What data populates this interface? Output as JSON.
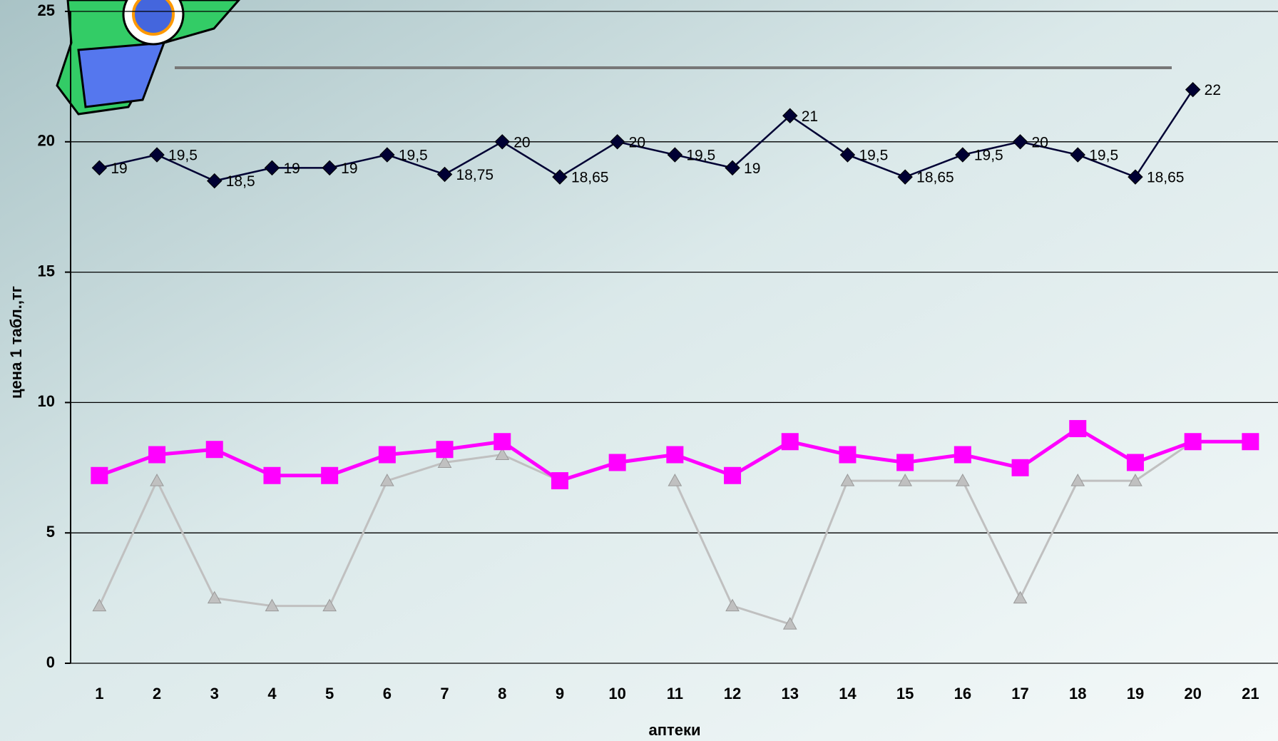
{
  "chart_data": {
    "type": "line",
    "y_label": "цена 1 табл.,тг",
    "x_label": "аптеки",
    "categories": [
      "1",
      "2",
      "3",
      "4",
      "5",
      "6",
      "7",
      "8",
      "9",
      "10",
      "11",
      "12",
      "13",
      "14",
      "15",
      "16",
      "17",
      "18",
      "19",
      "20",
      "21"
    ],
    "ylim": [
      0,
      25
    ],
    "yticks": [
      0,
      5,
      10,
      15,
      20,
      25
    ],
    "grid": true,
    "series": [
      {
        "color": "#000033",
        "marker": "diamond",
        "values": [
          19,
          19.5,
          18.5,
          19,
          19,
          19.5,
          18.75,
          20,
          18.65,
          20,
          19.5,
          19,
          21,
          19.5,
          18.65,
          19.5,
          20,
          19.5,
          18.65,
          22,
          null
        ],
        "value_labels": [
          "19",
          "19,5",
          "18,5",
          "19",
          "19",
          "19,5",
          "18,75",
          "20",
          "18,65",
          "20",
          "19,5",
          "19",
          "21",
          "19,5",
          "18,65",
          "19,5",
          "20",
          "19,5",
          "18,65",
          "22",
          null
        ]
      },
      {
        "color": "#ff00ff",
        "marker": "square",
        "values": [
          7.2,
          8,
          8.2,
          7.2,
          7.2,
          8,
          8.2,
          8.5,
          7,
          7.7,
          8,
          7.2,
          8.5,
          8,
          7.7,
          8,
          7.5,
          9,
          7.7,
          8.5,
          8.5
        ]
      },
      {
        "color": "#c0c0c0",
        "marker": "triangle",
        "values": [
          2.2,
          7,
          2.5,
          2.2,
          2.2,
          7,
          7.7,
          8,
          7,
          null,
          7,
          2.2,
          1.5,
          7,
          7,
          7,
          2.5,
          7,
          7,
          8.5,
          8.5
        ]
      }
    ]
  }
}
